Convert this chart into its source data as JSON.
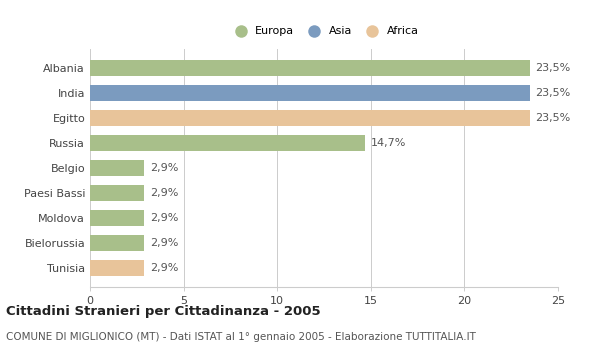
{
  "categories": [
    "Albania",
    "India",
    "Egitto",
    "Russia",
    "Belgio",
    "Paesi Bassi",
    "Moldova",
    "Bielorussia",
    "Tunisia"
  ],
  "values": [
    23.5,
    23.5,
    23.5,
    14.7,
    2.9,
    2.9,
    2.9,
    2.9,
    2.9
  ],
  "labels": [
    "23,5%",
    "23,5%",
    "23,5%",
    "14,7%",
    "2,9%",
    "2,9%",
    "2,9%",
    "2,9%",
    "2,9%"
  ],
  "bar_colors": [
    "#a8bf8a",
    "#7b9bbf",
    "#e8c49a",
    "#a8bf8a",
    "#a8bf8a",
    "#a8bf8a",
    "#a8bf8a",
    "#a8bf8a",
    "#e8c49a"
  ],
  "legend_labels": [
    "Europa",
    "Asia",
    "Africa"
  ],
  "legend_colors": [
    "#a8bf8a",
    "#7b9bbf",
    "#e8c49a"
  ],
  "xlim": [
    0,
    25
  ],
  "xticks": [
    0,
    5,
    10,
    15,
    20,
    25
  ],
  "title": "Cittadini Stranieri per Cittadinanza - 2005",
  "subtitle": "COMUNE DI MIGLIONICO (MT) - Dati ISTAT al 1° gennaio 2005 - Elaborazione TUTTITALIA.IT",
  "background_color": "#ffffff",
  "grid_color": "#cccccc",
  "bar_height": 0.65,
  "label_fontsize": 8,
  "tick_fontsize": 8,
  "title_fontsize": 9.5,
  "subtitle_fontsize": 7.5
}
